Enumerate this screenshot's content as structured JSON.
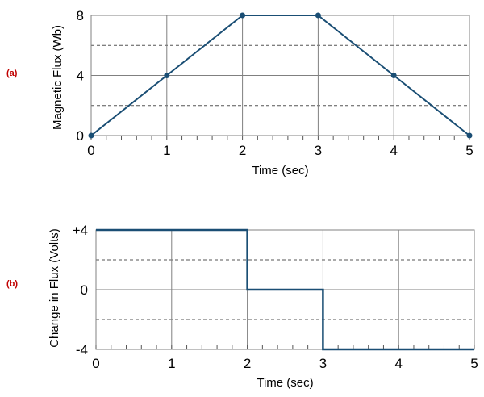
{
  "colors": {
    "line": "#1a4e74",
    "grid": "#808080",
    "dashed": "#555555",
    "panel_label": "#c00000"
  },
  "chart_data": [
    {
      "type": "line",
      "panel_label": "(a)",
      "xlabel": "Time (sec)",
      "ylabel": "Magnetic Flux (Wb)",
      "xlim": [
        0,
        5
      ],
      "ylim": [
        0,
        8
      ],
      "x_ticks": [
        "0",
        "1",
        "2",
        "3",
        "4",
        "5"
      ],
      "y_ticks": [
        "0",
        "4",
        "8"
      ],
      "dashed_gridlines_y": [
        2,
        6
      ],
      "grid": true,
      "markers": true,
      "x": [
        0,
        1,
        2,
        3,
        4,
        5
      ],
      "y": [
        0,
        4,
        8,
        8,
        4,
        0
      ]
    },
    {
      "type": "line",
      "panel_label": "(b)",
      "xlabel": "Time (sec)",
      "ylabel": "Change in Flux (Volts)",
      "xlim": [
        0,
        5
      ],
      "ylim": [
        -4,
        4
      ],
      "x_ticks": [
        "0",
        "1",
        "2",
        "3",
        "4",
        "5"
      ],
      "y_ticks": [
        "-4",
        "0",
        "+4"
      ],
      "dashed_gridlines_y": [
        -2,
        2
      ],
      "grid": true,
      "markers": false,
      "step": true,
      "x": [
        0,
        2,
        2,
        3,
        3,
        5
      ],
      "y": [
        4,
        4,
        0,
        0,
        -4,
        -4
      ]
    }
  ]
}
